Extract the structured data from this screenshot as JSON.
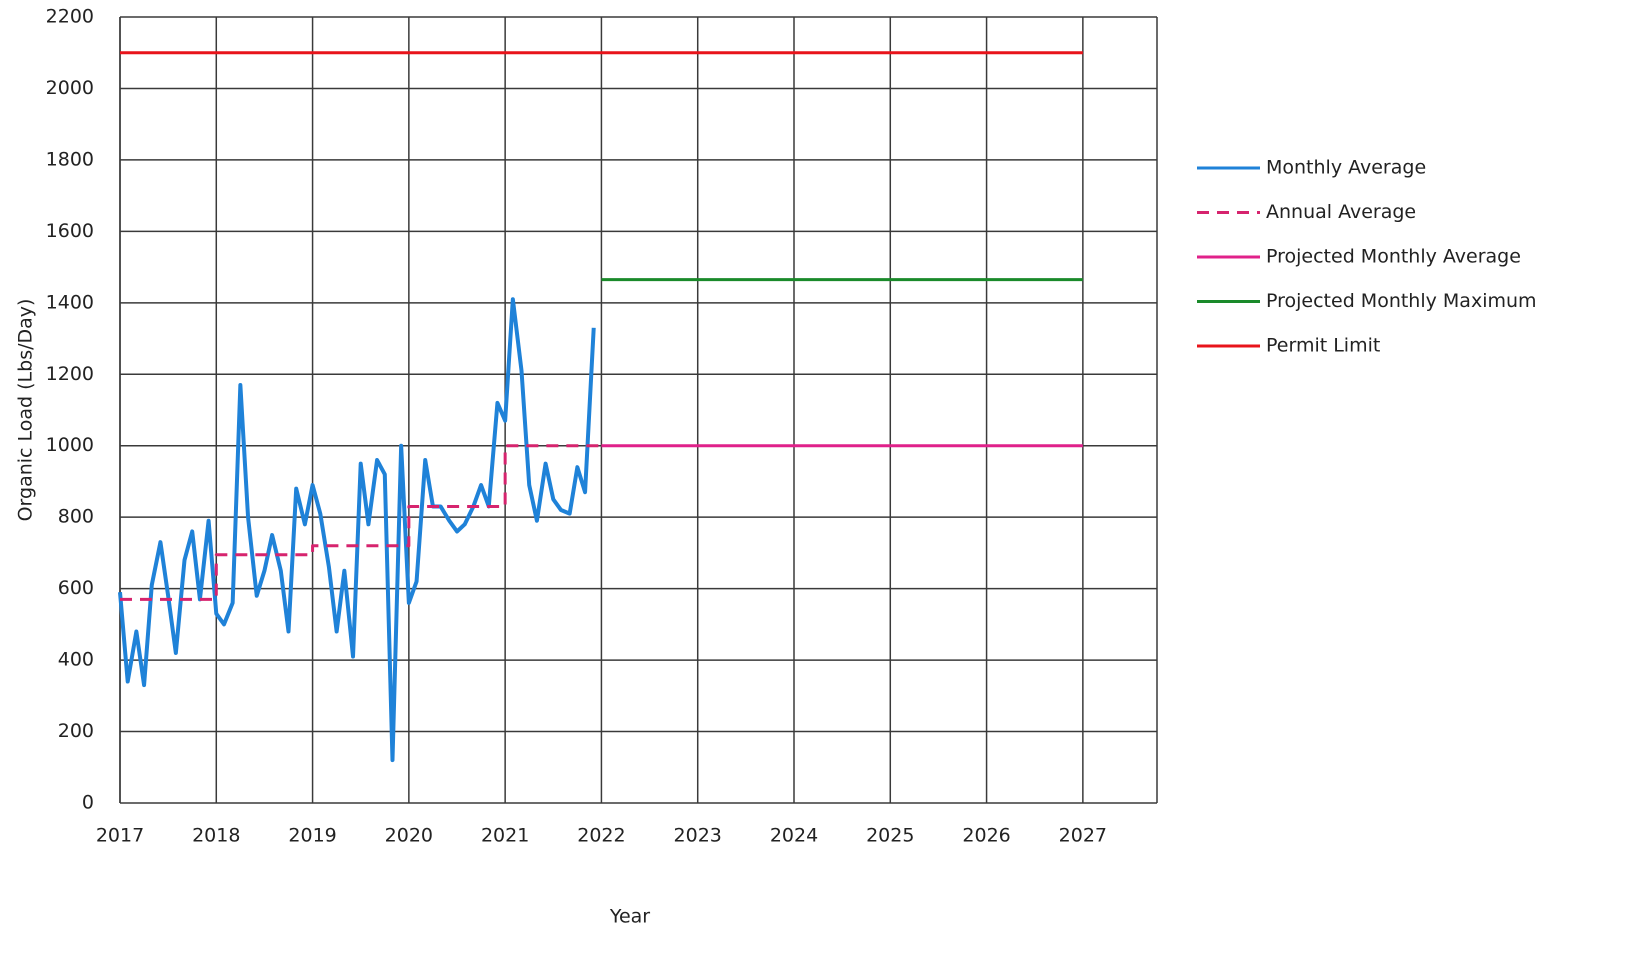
{
  "chart_data": {
    "type": "line",
    "xlabel": "Year",
    "ylabel": "Organic Load (Lbs/Day)",
    "xlim": [
      2017,
      2027.77
    ],
    "xticks": [
      2017,
      2018,
      2019,
      2020,
      2021,
      2022,
      2023,
      2024,
      2025,
      2026,
      2027
    ],
    "ylim": [
      0,
      2200
    ],
    "yticks": [
      0,
      200,
      400,
      600,
      800,
      1000,
      1200,
      1400,
      1600,
      1800,
      2000,
      2200
    ],
    "grid": true,
    "legend": "right",
    "series": [
      {
        "name": "Monthly Average",
        "color": "#1f82d8",
        "dashed": false,
        "x": [
          2017,
          2017.08,
          2017.17,
          2017.25,
          2017.33,
          2017.42,
          2017.5,
          2017.58,
          2017.67,
          2017.75,
          2017.83,
          2017.92,
          2018,
          2018.08,
          2018.17,
          2018.25,
          2018.33,
          2018.42,
          2018.5,
          2018.58,
          2018.67,
          2018.75,
          2018.83,
          2018.92,
          2019,
          2019.08,
          2019.17,
          2019.25,
          2019.33,
          2019.42,
          2019.5,
          2019.58,
          2019.67,
          2019.75,
          2019.83,
          2019.92,
          2020,
          2020.08,
          2020.17,
          2020.25,
          2020.33,
          2020.42,
          2020.5,
          2020.58,
          2020.67,
          2020.75,
          2020.83,
          2020.92,
          2021,
          2021.08,
          2021.17,
          2021.25,
          2021.33,
          2021.42,
          2021.5,
          2021.58,
          2021.67,
          2021.75,
          2021.83,
          2021.92
        ],
        "values": [
          590,
          340,
          480,
          330,
          610,
          730,
          580,
          420,
          680,
          760,
          570,
          790,
          530,
          500,
          560,
          1170,
          800,
          580,
          650,
          750,
          650,
          480,
          880,
          780,
          890,
          810,
          660,
          480,
          650,
          410,
          950,
          780,
          960,
          920,
          120,
          1000,
          560,
          620,
          960,
          830,
          830,
          790,
          760,
          780,
          830,
          890,
          830,
          1120,
          1070,
          1410,
          1210,
          890,
          790,
          950,
          850,
          820,
          810,
          940,
          870,
          1330
        ]
      },
      {
        "name": "Annual Average",
        "color": "#d6246e",
        "dashed": true,
        "x": [
          2017,
          2018,
          2018,
          2019,
          2019,
          2020,
          2020,
          2021,
          2021,
          2022
        ],
        "values": [
          570,
          570,
          695,
          695,
          720,
          720,
          830,
          830,
          1000,
          1000
        ]
      },
      {
        "name": "Projected Monthly Average",
        "color": "#e0218a",
        "dashed": false,
        "x": [
          2022,
          2027
        ],
        "values": [
          1000,
          1000
        ]
      },
      {
        "name": "Projected Monthly Maximum",
        "color": "#1a8a2a",
        "dashed": false,
        "x": [
          2022,
          2027
        ],
        "values": [
          1465,
          1465
        ]
      },
      {
        "name": "Permit Limit",
        "color": "#e8141b",
        "dashed": false,
        "x": [
          2017,
          2027
        ],
        "values": [
          2100,
          2100
        ]
      }
    ]
  }
}
